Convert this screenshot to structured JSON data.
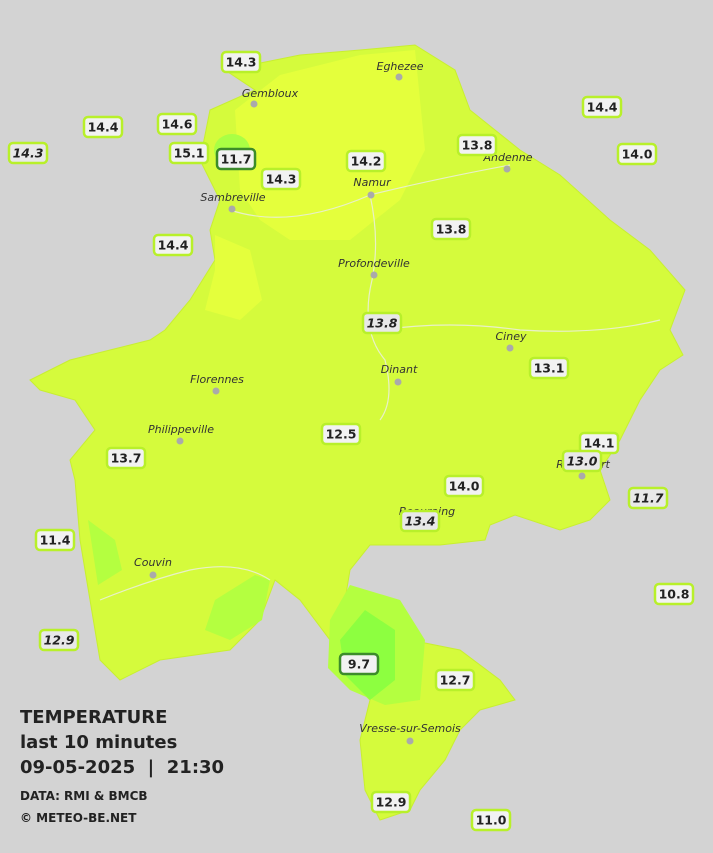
{
  "legend": {
    "title": "TEMPERATURE",
    "subtitle": "last 10 minutes",
    "datetime": "09-05-2025  |  21:30",
    "source": "DATA: RMI & BMCB",
    "credit": "© METEO-BE.NET"
  },
  "towns": [
    "Eghezee",
    "Gembloux",
    "Andenne",
    "Namur",
    "Sambreville",
    "Profondeville",
    "Ciney",
    "Dinant",
    "Florennes",
    "Philippeville",
    "Rochefort",
    "Beauraing",
    "Couvin",
    "Vresse-sur-Semois"
  ],
  "stations": [
    "14.3",
    "14.4",
    "14.6",
    "14.3",
    "15.1",
    "11.7",
    "14.3",
    "14.2",
    "13.8",
    "14.4",
    "14.0",
    "14.4",
    "13.8",
    "13.8",
    "13.1",
    "12.5",
    "13.7",
    "14.1",
    "13.0",
    "11.7",
    "14.0",
    "13.4",
    "11.4",
    "10.8",
    "12.9",
    "9.7",
    "12.7",
    "12.9",
    "11.0"
  ]
}
